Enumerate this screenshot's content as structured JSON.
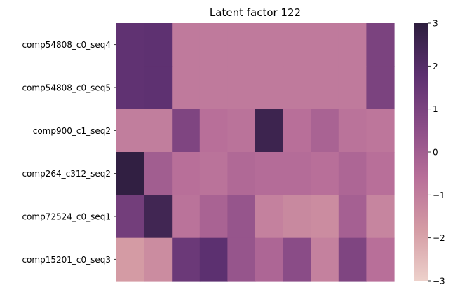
{
  "chart_data": {
    "type": "heatmap",
    "title": "Latent factor 122",
    "xlabel": "",
    "ylabel": "",
    "rows": [
      "comp54808_c0_seq4",
      "comp54808_c0_seq5",
      "comp900_c1_seq2",
      "comp264_c312_seq2",
      "comp72524_c0_seq1",
      "comp15201_c0_seq3"
    ],
    "columns_count": 10,
    "values": [
      [
        1.7,
        1.75,
        -0.9,
        -0.9,
        -0.9,
        -0.9,
        -0.9,
        -0.9,
        -0.9,
        1.0
      ],
      [
        1.7,
        1.75,
        -0.9,
        -0.9,
        -0.9,
        -0.9,
        -0.9,
        -0.9,
        -0.9,
        1.0
      ],
      [
        -1.0,
        -1.0,
        0.9,
        -0.6,
        -0.7,
        2.6,
        -0.6,
        -0.2,
        -0.7,
        -0.8
      ],
      [
        2.9,
        0.0,
        -0.6,
        -0.7,
        -0.4,
        -0.5,
        -0.5,
        -0.6,
        -0.3,
        -0.6
      ],
      [
        1.2,
        2.5,
        -0.7,
        -0.2,
        0.3,
        -1.1,
        -1.3,
        -1.4,
        -0.1,
        -1.2
      ],
      [
        -1.8,
        -1.4,
        1.4,
        1.8,
        0.3,
        -0.3,
        0.6,
        -1.1,
        0.9,
        -0.6
      ]
    ],
    "colorbar": {
      "min": -3,
      "max": 3,
      "ticks": [
        3,
        2,
        1,
        0,
        -1,
        -2,
        -3
      ],
      "tick_labels": [
        "3",
        "2",
        "1",
        "0",
        "−1",
        "−2",
        "−3"
      ]
    },
    "colormap": [
      "#edd1cb",
      "#d49ba4",
      "#b86f99",
      "#8a4c87",
      "#5c3070",
      "#2d1e3e"
    ],
    "grid": false
  }
}
